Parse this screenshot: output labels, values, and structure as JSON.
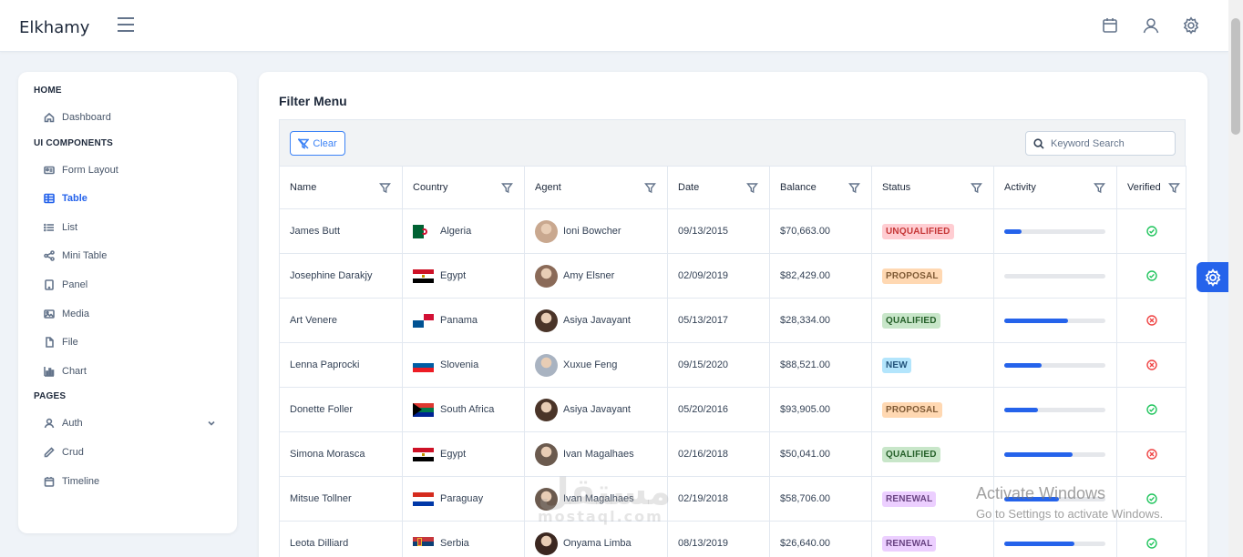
{
  "app": {
    "title": "Elkhamy"
  },
  "sidebar": {
    "sections": [
      {
        "label": "HOME",
        "items": [
          {
            "label": "Dashboard",
            "icon": "home-icon"
          }
        ]
      },
      {
        "label": "UI COMPONENTS",
        "items": [
          {
            "label": "Form Layout",
            "icon": "id-card-icon"
          },
          {
            "label": "Table",
            "icon": "table-icon",
            "active": true
          },
          {
            "label": "List",
            "icon": "list-icon"
          },
          {
            "label": "Mini Table",
            "icon": "share-icon"
          },
          {
            "label": "Panel",
            "icon": "tablet-icon"
          },
          {
            "label": "Media",
            "icon": "image-icon"
          },
          {
            "label": "File",
            "icon": "file-icon"
          },
          {
            "label": "Chart",
            "icon": "chart-bar-icon"
          }
        ]
      },
      {
        "label": "PAGES",
        "items": [
          {
            "label": "Auth",
            "icon": "user-icon",
            "expandable": true
          },
          {
            "label": "Crud",
            "icon": "pencil-icon"
          },
          {
            "label": "Timeline",
            "icon": "calendar-icon"
          }
        ]
      }
    ]
  },
  "main": {
    "title": "Filter Menu",
    "clear_label": "Clear",
    "search_placeholder": "Keyword Search"
  },
  "table": {
    "columns": [
      "Name",
      "Country",
      "Agent",
      "Date",
      "Balance",
      "Status",
      "Activity",
      "Verified"
    ],
    "rows": [
      {
        "name": "James Butt",
        "country": "Algeria",
        "flag": "algeria",
        "agent": "Ioni Bowcher",
        "avatar": "#c9a88f",
        "date": "09/13/2015",
        "balance": "$70,663.00",
        "status": "UNQUALIFIED",
        "activity": 0.17,
        "verified": true
      },
      {
        "name": "Josephine Darakjy",
        "country": "Egypt",
        "flag": "egypt",
        "agent": "Amy Elsner",
        "avatar": "#8a6a58",
        "date": "02/09/2019",
        "balance": "$82,429.00",
        "status": "PROPOSAL",
        "activity": 0.0,
        "verified": true
      },
      {
        "name": "Art Venere",
        "country": "Panama",
        "flag": "panama",
        "agent": "Asiya Javayant",
        "avatar": "#4a3428",
        "date": "05/13/2017",
        "balance": "$28,334.00",
        "status": "QUALIFIED",
        "activity": 0.63,
        "verified": false
      },
      {
        "name": "Lenna Paprocki",
        "country": "Slovenia",
        "flag": "slovenia",
        "agent": "Xuxue Feng",
        "avatar": "#a9b3c1",
        "date": "09/15/2020",
        "balance": "$88,521.00",
        "status": "NEW",
        "activity": 0.37,
        "verified": false
      },
      {
        "name": "Donette Foller",
        "country": "South Africa",
        "flag": "southafrica",
        "agent": "Asiya Javayant",
        "avatar": "#4a3428",
        "date": "05/20/2016",
        "balance": "$93,905.00",
        "status": "PROPOSAL",
        "activity": 0.33,
        "verified": true
      },
      {
        "name": "Simona Morasca",
        "country": "Egypt",
        "flag": "egypt",
        "agent": "Ivan Magalhaes",
        "avatar": "#6b5a4e",
        "date": "02/16/2018",
        "balance": "$50,041.00",
        "status": "QUALIFIED",
        "activity": 0.68,
        "verified": false
      },
      {
        "name": "Mitsue Tollner",
        "country": "Paraguay",
        "flag": "paraguay",
        "agent": "Ivan Magalhaes",
        "avatar": "#6b5a4e",
        "date": "02/19/2018",
        "balance": "$58,706.00",
        "status": "RENEWAL",
        "activity": 0.54,
        "verified": true
      },
      {
        "name": "Leota Dilliard",
        "country": "Serbia",
        "flag": "serbia",
        "agent": "Onyama Limba",
        "avatar": "#3b2720",
        "date": "08/13/2019",
        "balance": "$26,640.00",
        "status": "RENEWAL",
        "activity": 0.69,
        "verified": true
      }
    ]
  },
  "status_colors": {
    "UNQUALIFIED": {
      "bg": "#ffcdd2",
      "fg": "#c63737"
    },
    "PROPOSAL": {
      "bg": "#ffd8b2",
      "fg": "#805b36"
    },
    "QUALIFIED": {
      "bg": "#c8e6c9",
      "fg": "#256029"
    },
    "NEW": {
      "bg": "#b3e5fc",
      "fg": "#23547b"
    },
    "RENEWAL": {
      "bg": "#eccfff",
      "fg": "#694382"
    }
  },
  "colors": {
    "accent": "#2563eb",
    "verified": "#22c55e",
    "unverified": "#ef4444"
  },
  "watermark": {
    "text": "مستقل",
    "sub": "mostaql.com"
  },
  "activation": {
    "line1": "Activate Windows",
    "line2": "Go to Settings to activate Windows."
  }
}
